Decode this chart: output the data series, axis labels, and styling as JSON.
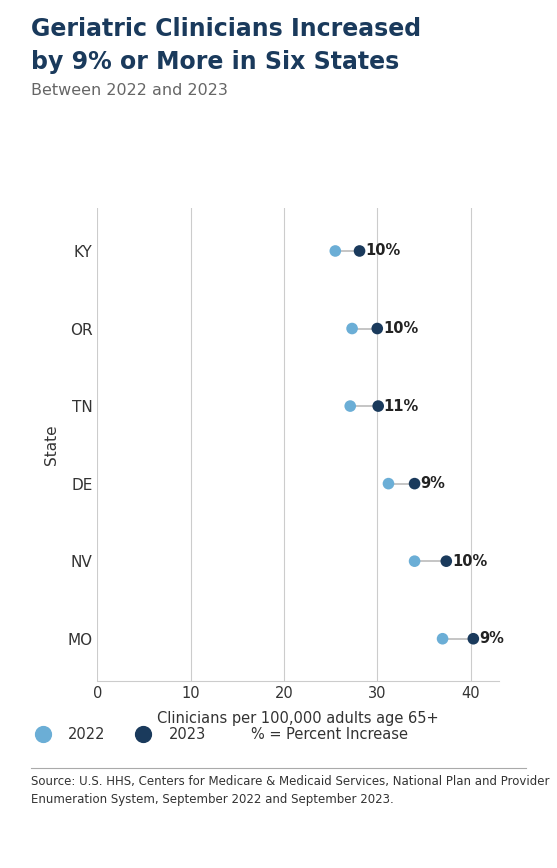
{
  "title_line1": "Geriatric Clinicians Increased",
  "title_line2": "by 9% or More in Six States",
  "subtitle": "Between 2022 and 2023",
  "xlabel": "Clinicians per 100,000 adults age 65+",
  "ylabel": "State",
  "source": "Source: U.S. HHS, Centers for Medicare & Medicaid Services, National Plan and Provider\nEnumeration System, September 2022 and September 2023.",
  "states": [
    "KY",
    "OR",
    "TN",
    "DE",
    "NV",
    "MO"
  ],
  "val_2022": [
    25.5,
    27.3,
    27.1,
    31.2,
    34.0,
    37.0
  ],
  "val_2023": [
    28.1,
    30.0,
    30.1,
    34.0,
    37.4,
    40.3
  ],
  "pct_labels": [
    "10%",
    "10%",
    "11%",
    "9%",
    "10%",
    "9%"
  ],
  "color_2022": "#6BAED6",
  "color_2023": "#1A3A5C",
  "line_color": "#BBBBBB",
  "grid_color": "#CCCCCC",
  "title_color": "#1A3A5C",
  "subtitle_color": "#666666",
  "xlim": [
    0,
    43
  ],
  "xticks": [
    0,
    10,
    20,
    30,
    40
  ],
  "background_color": "#FFFFFF",
  "legend_label_2022": "2022",
  "legend_label_2023": "2023",
  "legend_pct_label": "% = Percent Increase"
}
